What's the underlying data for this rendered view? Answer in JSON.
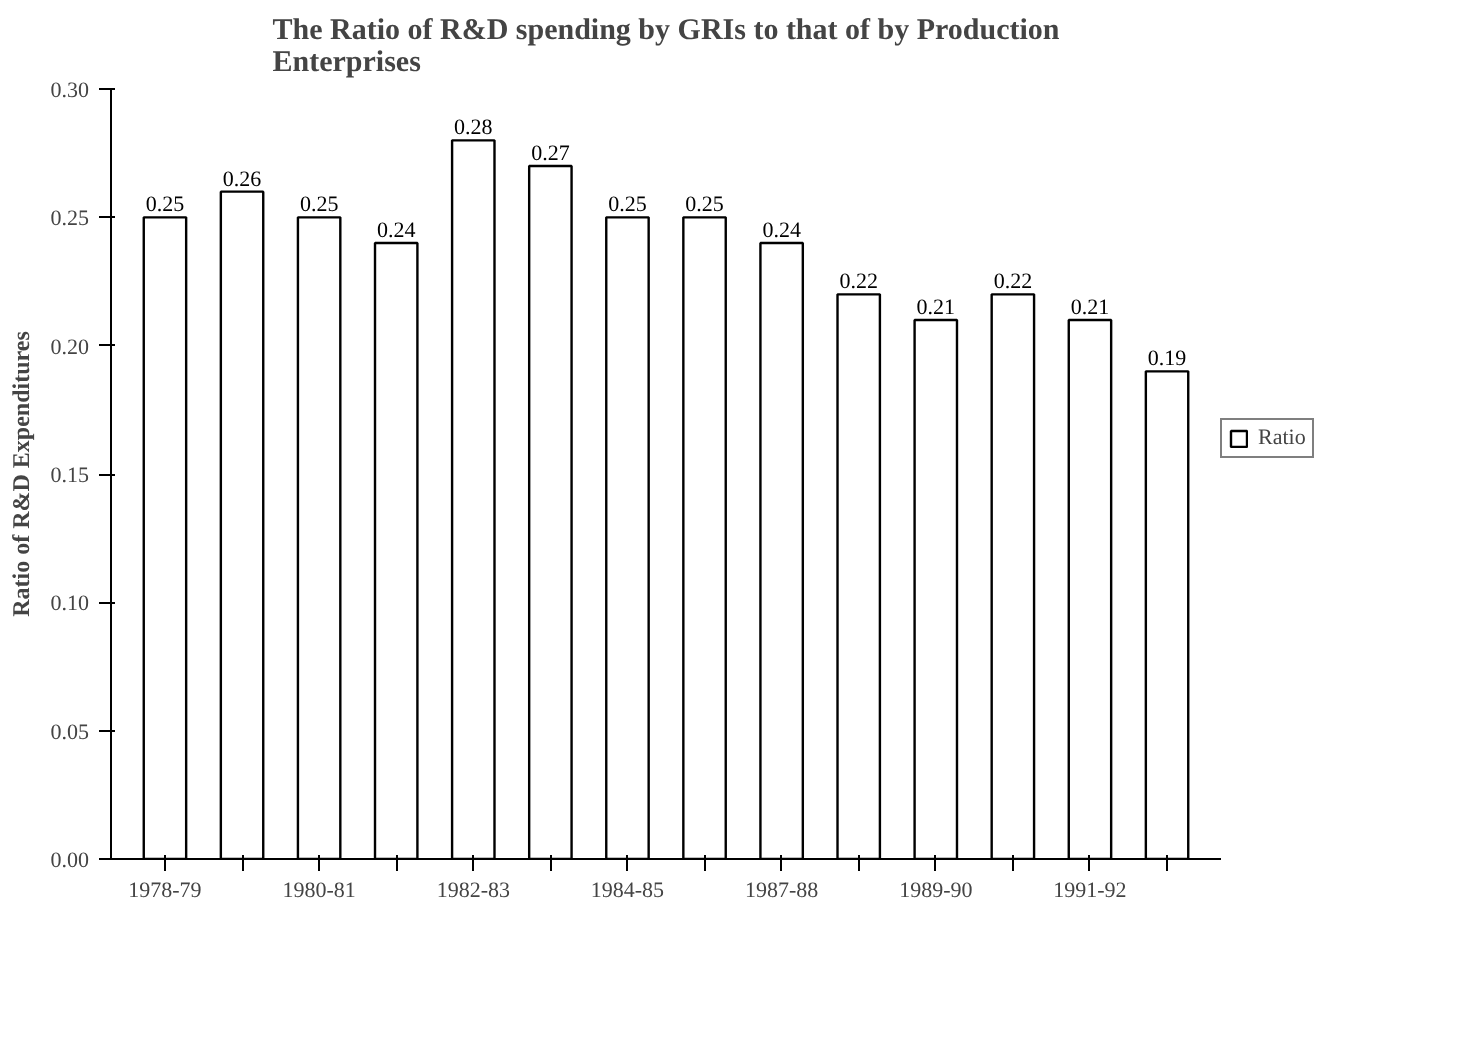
{
  "chart_data": {
    "type": "bar",
    "title": "The Ratio of R&D spending by GRIs to that of by Production Enterprises",
    "ylabel": "Ratio of R&D Expenditures",
    "categories": [
      "1978-79",
      null,
      "1980-81",
      null,
      "1982-83",
      null,
      "1984-85",
      null,
      "1987-88",
      null,
      "1989-90",
      null,
      "1991-92",
      null
    ],
    "series": [
      {
        "name": "Ratio",
        "color": "#ffffff",
        "values": [
          0.25,
          0.26,
          0.25,
          0.24,
          0.28,
          0.27,
          0.25,
          0.25,
          0.24,
          0.22,
          0.21,
          0.22,
          0.21,
          0.19
        ]
      }
    ],
    "ylim": [
      0,
      0.3
    ],
    "yticks": [
      {
        "value": 0,
        "label": "0.00"
      },
      {
        "value": 0.05,
        "label": "0.05"
      },
      {
        "value": 0.1,
        "label": "0.10"
      },
      {
        "value": 0.15,
        "label": "0.15"
      },
      {
        "value": 0.2,
        "label": "0.20"
      },
      {
        "value": 0.25,
        "label": "0.25"
      },
      {
        "value": 0.3,
        "label": "0.30"
      }
    ],
    "data_labels": true,
    "legend": "right",
    "grid": false
  }
}
